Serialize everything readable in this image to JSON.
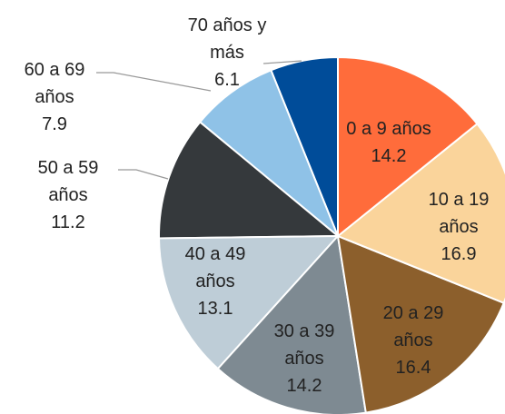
{
  "chart_data": {
    "type": "pie",
    "categories": [
      "0 a 9 años",
      "10 a 19 años",
      "20 a 29 años",
      "30 a 39 años",
      "40 a 49 años",
      "50 a 59 años",
      "60 a 69 años",
      "70 años y más"
    ],
    "values": [
      14.2,
      16.9,
      16.4,
      14.2,
      13.1,
      11.2,
      7.9,
      6.1
    ],
    "colors": [
      "#FF6C3B",
      "#FAD49B",
      "#8C5F2C",
      "#7E8A92",
      "#BECDD7",
      "#35393C",
      "#8FC2E7",
      "#004C99"
    ]
  }
}
